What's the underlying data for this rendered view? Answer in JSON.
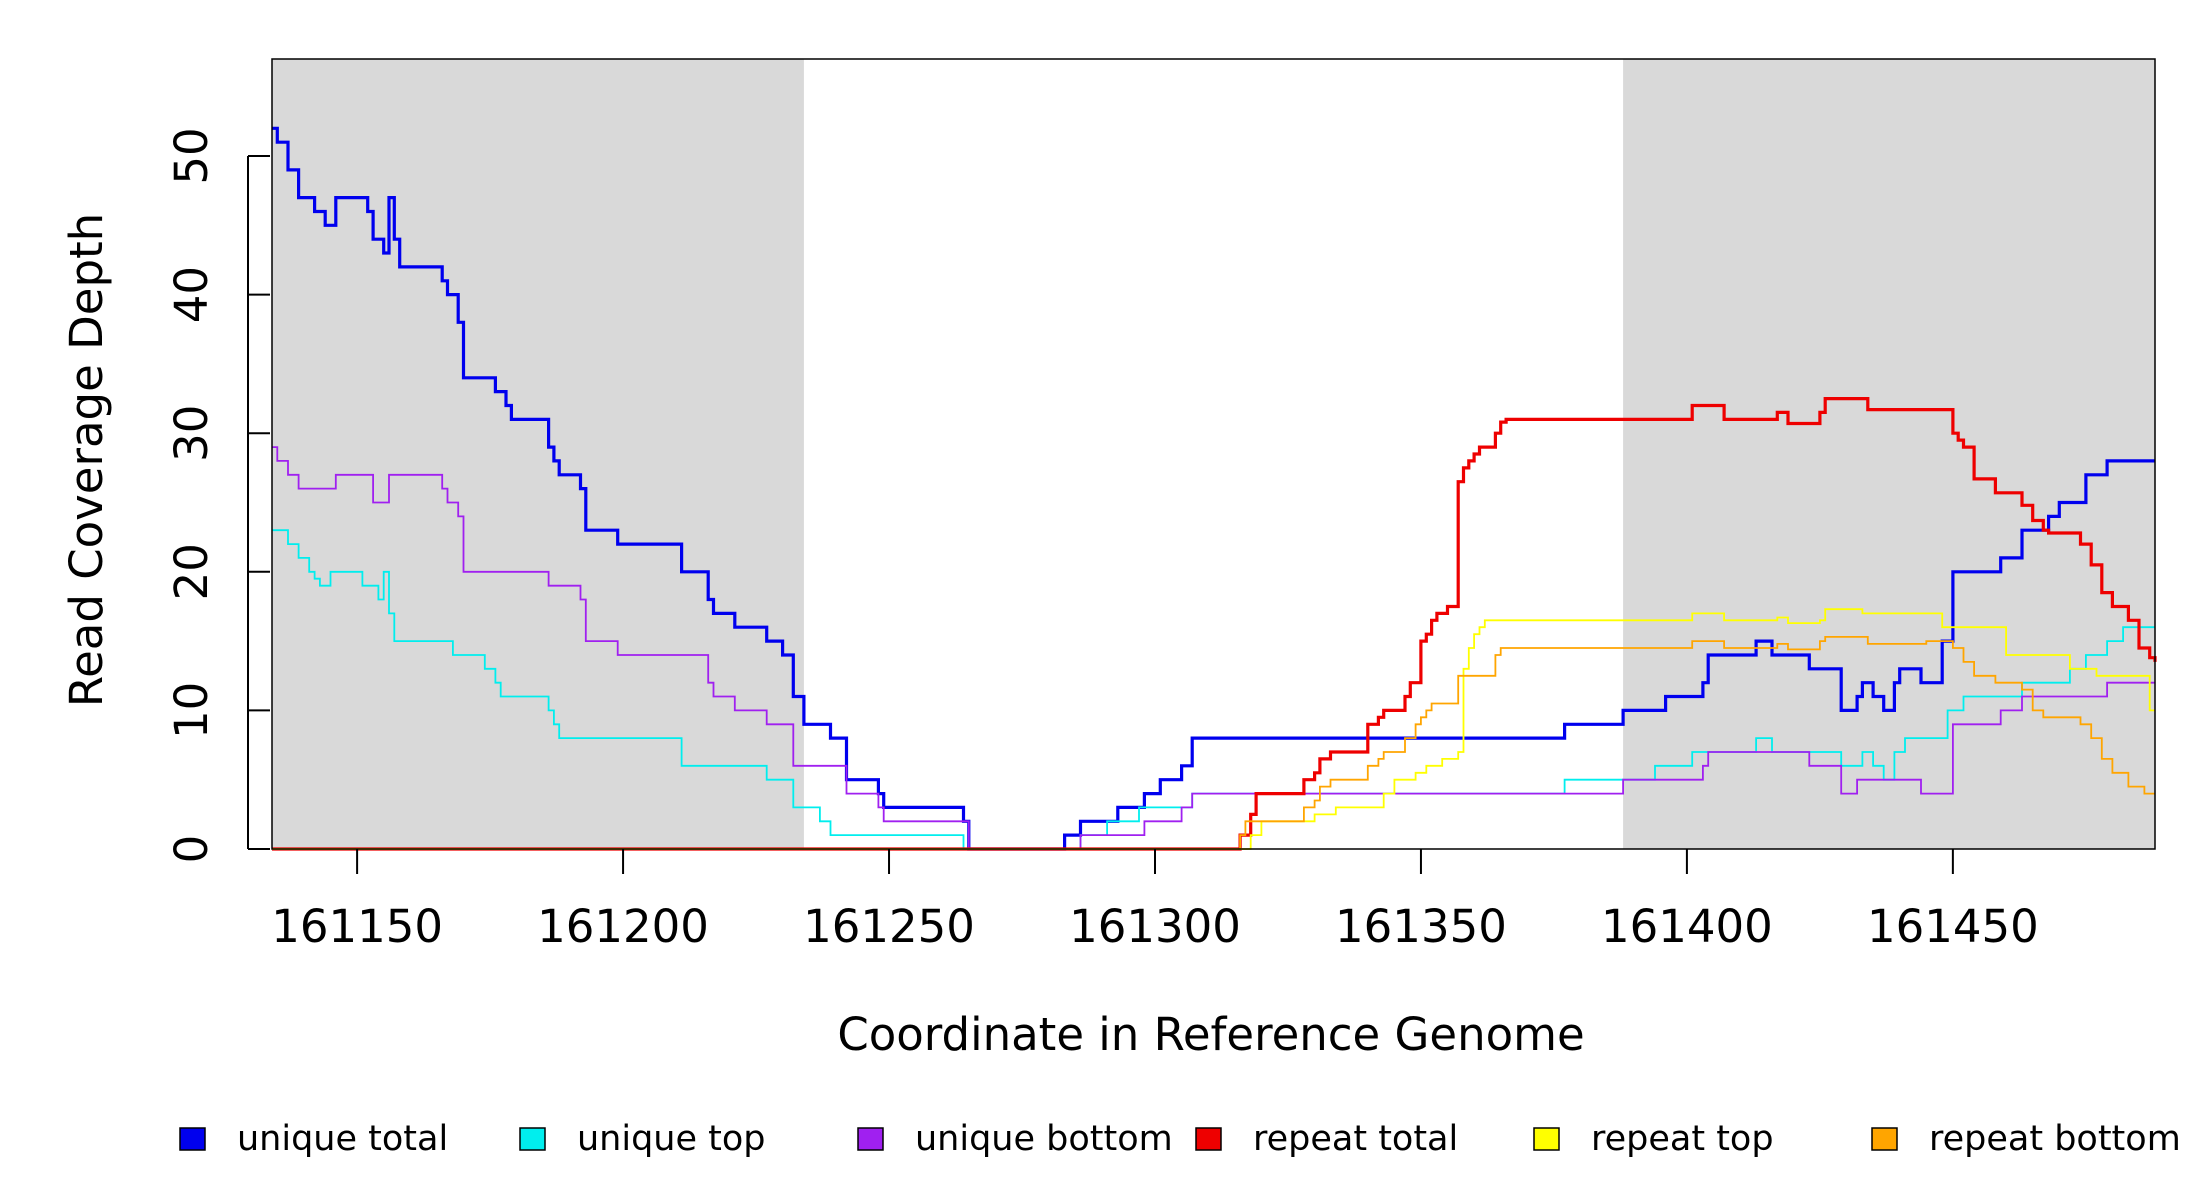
{
  "chart_data": {
    "type": "line",
    "title": "",
    "xlabel": "Coordinate in Reference Genome",
    "ylabel": "Read Coverage Depth",
    "xlim": [
      161134,
      161488
    ],
    "ylim": [
      0,
      57
    ],
    "xticks": [
      161150,
      161200,
      161250,
      161300,
      161350,
      161400,
      161450
    ],
    "yticks": [
      0,
      10,
      20,
      30,
      40,
      50
    ],
    "grid": false,
    "repeat_regions": [
      [
        161134,
        161234
      ],
      [
        161388,
        161488
      ]
    ],
    "series": [
      {
        "name": "unique total",
        "color": "#0000ee",
        "points": [
          [
            161134,
            52
          ],
          [
            161135,
            51
          ],
          [
            161137,
            49
          ],
          [
            161139,
            47
          ],
          [
            161142,
            46
          ],
          [
            161144,
            45
          ],
          [
            161146,
            47
          ],
          [
            161152,
            46
          ],
          [
            161153,
            44
          ],
          [
            161155,
            43
          ],
          [
            161156,
            47
          ],
          [
            161157,
            44
          ],
          [
            161158,
            42
          ],
          [
            161166,
            41
          ],
          [
            161167,
            40
          ],
          [
            161169,
            38
          ],
          [
            161170,
            34
          ],
          [
            161176,
            33
          ],
          [
            161178,
            32
          ],
          [
            161179,
            31
          ],
          [
            161186,
            29
          ],
          [
            161187,
            28
          ],
          [
            161188,
            27
          ],
          [
            161192,
            26
          ],
          [
            161193,
            23
          ],
          [
            161199,
            22
          ],
          [
            161211,
            20
          ],
          [
            161216,
            18
          ],
          [
            161217,
            17
          ],
          [
            161221,
            16
          ],
          [
            161227,
            15
          ],
          [
            161230,
            14
          ],
          [
            161232,
            11
          ],
          [
            161234,
            9
          ],
          [
            161239,
            8
          ],
          [
            161242,
            5
          ],
          [
            161248,
            4
          ],
          [
            161249,
            3
          ],
          [
            161264,
            2
          ],
          [
            161265,
            0
          ],
          [
            161283,
            1
          ],
          [
            161286,
            2
          ],
          [
            161293,
            3
          ],
          [
            161298,
            4
          ],
          [
            161301,
            5
          ],
          [
            161305,
            6
          ],
          [
            161307,
            8
          ],
          [
            161377,
            9
          ],
          [
            161388,
            10
          ],
          [
            161396,
            11
          ],
          [
            161403,
            12
          ],
          [
            161404,
            14
          ],
          [
            161413,
            15
          ],
          [
            161416,
            14
          ],
          [
            161423,
            13
          ],
          [
            161429,
            10
          ],
          [
            161432,
            11
          ],
          [
            161433,
            12
          ],
          [
            161435,
            11
          ],
          [
            161437,
            10
          ],
          [
            161439,
            12
          ],
          [
            161440,
            13
          ],
          [
            161444,
            12
          ],
          [
            161448,
            15
          ],
          [
            161450,
            20
          ],
          [
            161459,
            21
          ],
          [
            161463,
            23
          ],
          [
            161468,
            24
          ],
          [
            161470,
            25
          ],
          [
            161475,
            27
          ],
          [
            161479,
            28
          ],
          [
            161488,
            28
          ]
        ]
      },
      {
        "name": "unique top",
        "color": "#00eeee",
        "points": [
          [
            161134,
            23
          ],
          [
            161137,
            22
          ],
          [
            161139,
            21
          ],
          [
            161141,
            20
          ],
          [
            161142,
            19.5
          ],
          [
            161143,
            19
          ],
          [
            161145,
            20
          ],
          [
            161151,
            19
          ],
          [
            161154,
            18
          ],
          [
            161155,
            20
          ],
          [
            161156,
            17
          ],
          [
            161157,
            15
          ],
          [
            161168,
            14
          ],
          [
            161174,
            13
          ],
          [
            161176,
            12
          ],
          [
            161177,
            11
          ],
          [
            161186,
            10
          ],
          [
            161187,
            9
          ],
          [
            161188,
            8
          ],
          [
            161211,
            6
          ],
          [
            161227,
            5
          ],
          [
            161232,
            3
          ],
          [
            161237,
            2
          ],
          [
            161239,
            1
          ],
          [
            161264,
            0
          ],
          [
            161286,
            1
          ],
          [
            161291,
            2
          ],
          [
            161297,
            3
          ],
          [
            161307,
            4
          ],
          [
            161377,
            5
          ],
          [
            161388,
            5
          ],
          [
            161394,
            6
          ],
          [
            161401,
            7
          ],
          [
            161413,
            8
          ],
          [
            161416,
            7
          ],
          [
            161423,
            7
          ],
          [
            161429,
            6
          ],
          [
            161433,
            7
          ],
          [
            161435,
            6
          ],
          [
            161437,
            5
          ],
          [
            161439,
            7
          ],
          [
            161441,
            8
          ],
          [
            161449,
            10
          ],
          [
            161452,
            11
          ],
          [
            161463,
            12
          ],
          [
            161472,
            13
          ],
          [
            161475,
            14
          ],
          [
            161479,
            15
          ],
          [
            161482,
            16
          ],
          [
            161488,
            16
          ]
        ]
      },
      {
        "name": "unique bottom",
        "color": "#a020f0",
        "points": [
          [
            161134,
            29
          ],
          [
            161135,
            28
          ],
          [
            161137,
            27
          ],
          [
            161139,
            26
          ],
          [
            161146,
            27
          ],
          [
            161153,
            25
          ],
          [
            161156,
            27
          ],
          [
            161166,
            26
          ],
          [
            161167,
            25
          ],
          [
            161169,
            24
          ],
          [
            161170,
            20
          ],
          [
            161186,
            19
          ],
          [
            161192,
            18
          ],
          [
            161193,
            15
          ],
          [
            161199,
            14
          ],
          [
            161216,
            12
          ],
          [
            161217,
            11
          ],
          [
            161221,
            10
          ],
          [
            161227,
            9
          ],
          [
            161232,
            6
          ],
          [
            161242,
            4
          ],
          [
            161248,
            3
          ],
          [
            161249,
            2
          ],
          [
            161265,
            0
          ],
          [
            161283,
            0
          ],
          [
            161286,
            1
          ],
          [
            161298,
            2
          ],
          [
            161301,
            2
          ],
          [
            161305,
            3
          ],
          [
            161307,
            4
          ],
          [
            161388,
            5
          ],
          [
            161403,
            6
          ],
          [
            161404,
            7
          ],
          [
            161423,
            6
          ],
          [
            161429,
            4
          ],
          [
            161432,
            5
          ],
          [
            161444,
            4
          ],
          [
            161450,
            9
          ],
          [
            161459,
            10
          ],
          [
            161463,
            11
          ],
          [
            161479,
            12
          ],
          [
            161488,
            12
          ]
        ]
      },
      {
        "name": "repeat total",
        "color": "#ee0000",
        "points": [
          [
            161134,
            0
          ],
          [
            161316,
            1
          ],
          [
            161318,
            2.5
          ],
          [
            161319,
            4
          ],
          [
            161328,
            5
          ],
          [
            161330,
            5.5
          ],
          [
            161331,
            6.5
          ],
          [
            161333,
            7
          ],
          [
            161340,
            9
          ],
          [
            161342,
            9.5
          ],
          [
            161343,
            10
          ],
          [
            161347,
            11
          ],
          [
            161348,
            12
          ],
          [
            161350,
            15
          ],
          [
            161351,
            15.5
          ],
          [
            161352,
            16.5
          ],
          [
            161353,
            17
          ],
          [
            161355,
            17.5
          ],
          [
            161357,
            26.5
          ],
          [
            161358,
            27.5
          ],
          [
            161359,
            28
          ],
          [
            161360,
            28.5
          ],
          [
            161361,
            29
          ],
          [
            161364,
            30
          ],
          [
            161365,
            30.8
          ],
          [
            161366,
            31
          ],
          [
            161401,
            32
          ],
          [
            161407,
            31
          ],
          [
            161417,
            31.5
          ],
          [
            161419,
            30.7
          ],
          [
            161425,
            31.5
          ],
          [
            161426,
            32.5
          ],
          [
            161434,
            31.7
          ],
          [
            161450,
            30
          ],
          [
            161451,
            29.5
          ],
          [
            161452,
            29
          ],
          [
            161454,
            26.7
          ],
          [
            161458,
            25.7
          ],
          [
            161463,
            24.8
          ],
          [
            161465,
            23.7
          ],
          [
            161467,
            23
          ],
          [
            161468,
            22.8
          ],
          [
            161474,
            22
          ],
          [
            161476,
            20.5
          ],
          [
            161478,
            18.5
          ],
          [
            161480,
            17.5
          ],
          [
            161483,
            16.5
          ],
          [
            161485,
            14.5
          ],
          [
            161487,
            13.8
          ],
          [
            161488,
            13.5
          ]
        ]
      },
      {
        "name": "repeat top",
        "color": "#ffff00",
        "points": [
          [
            161134,
            0
          ],
          [
            161318,
            1
          ],
          [
            161320,
            2
          ],
          [
            161330,
            2.5
          ],
          [
            161334,
            3
          ],
          [
            161343,
            4
          ],
          [
            161345,
            5
          ],
          [
            161349,
            5.5
          ],
          [
            161351,
            6
          ],
          [
            161354,
            6.5
          ],
          [
            161357,
            7
          ],
          [
            161358,
            13
          ],
          [
            161359,
            14.5
          ],
          [
            161360,
            15.5
          ],
          [
            161361,
            16
          ],
          [
            161362,
            16.5
          ],
          [
            161401,
            17
          ],
          [
            161407,
            16.5
          ],
          [
            161417,
            16.7
          ],
          [
            161419,
            16.3
          ],
          [
            161425,
            16.5
          ],
          [
            161426,
            17.3
          ],
          [
            161433,
            17
          ],
          [
            161448,
            16
          ],
          [
            161460,
            14
          ],
          [
            161472,
            13
          ],
          [
            161477,
            12.5
          ],
          [
            161487,
            10
          ],
          [
            161488,
            10
          ]
        ]
      },
      {
        "name": "repeat bottom",
        "color": "#ffa500",
        "points": [
          [
            161134,
            0
          ],
          [
            161316,
            1
          ],
          [
            161317,
            2
          ],
          [
            161328,
            3
          ],
          [
            161330,
            3.5
          ],
          [
            161331,
            4.5
          ],
          [
            161333,
            5
          ],
          [
            161340,
            6
          ],
          [
            161342,
            6.5
          ],
          [
            161343,
            7
          ],
          [
            161347,
            8
          ],
          [
            161349,
            9
          ],
          [
            161350,
            9.5
          ],
          [
            161351,
            10
          ],
          [
            161352,
            10.5
          ],
          [
            161357,
            12.5
          ],
          [
            161364,
            14
          ],
          [
            161365,
            14.5
          ],
          [
            161401,
            15
          ],
          [
            161407,
            14.5
          ],
          [
            161417,
            14.8
          ],
          [
            161419,
            14.4
          ],
          [
            161425,
            15
          ],
          [
            161426,
            15.3
          ],
          [
            161434,
            14.8
          ],
          [
            161445,
            15
          ],
          [
            161450,
            14.5
          ],
          [
            161452,
            13.5
          ],
          [
            161454,
            12.5
          ],
          [
            161458,
            12
          ],
          [
            161463,
            11.5
          ],
          [
            161465,
            10
          ],
          [
            161467,
            9.5
          ],
          [
            161474,
            9
          ],
          [
            161476,
            8
          ],
          [
            161478,
            6.5
          ],
          [
            161480,
            5.5
          ],
          [
            161483,
            4.5
          ],
          [
            161486,
            4
          ],
          [
            161488,
            4
          ]
        ]
      }
    ]
  },
  "legend": {
    "items": [
      {
        "label": "unique total",
        "color": "#0000ee"
      },
      {
        "label": "unique top",
        "color": "#00eeee"
      },
      {
        "label": "unique bottom",
        "color": "#a020f0"
      },
      {
        "label": "repeat total",
        "color": "#ee0000"
      },
      {
        "label": "repeat top",
        "color": "#ffff00"
      },
      {
        "label": "repeat bottom",
        "color": "#ffa500"
      }
    ]
  },
  "style": {
    "shade_color": "#d9d9d9"
  }
}
